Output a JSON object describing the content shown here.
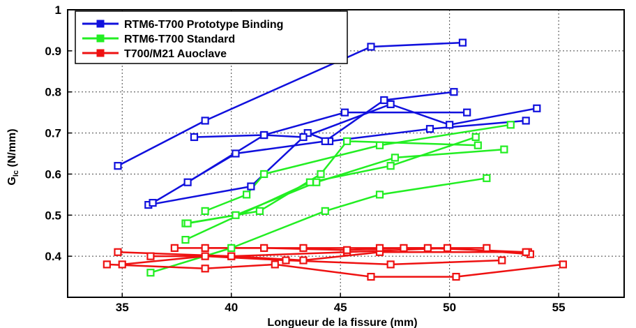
{
  "chart_data": {
    "type": "line",
    "xlabel": "Longueur de la fissure  (mm)",
    "ylabel_main": "G",
    "ylabel_sub": "Ic",
    "ylabel_rest": " (N/mm)",
    "xlim": [
      32.5,
      58
    ],
    "ylim": [
      0.3,
      1.0
    ],
    "xticks": [
      35,
      40,
      45,
      50,
      55
    ],
    "yticks": [
      0.4,
      0.5,
      0.6,
      0.7,
      0.8,
      0.9,
      1
    ],
    "ytick_labels": [
      "0.4",
      "0.5",
      "0.6",
      "0.7",
      "0.8",
      "0.9",
      "1"
    ],
    "grid": true,
    "legend_position": "top-left",
    "series": [
      {
        "name": "RTM6-T700 Prototype Binding",
        "color": "#1010dd",
        "legend": true,
        "points": [
          [
            34.8,
            0.62
          ],
          [
            38.8,
            0.73
          ],
          [
            46.4,
            0.91
          ],
          [
            50.6,
            0.92
          ]
        ]
      },
      {
        "color": "#1010dd",
        "points": [
          [
            36.2,
            0.525
          ],
          [
            40.9,
            0.57
          ],
          [
            43.5,
            0.7
          ],
          [
            44.5,
            0.68
          ],
          [
            49.1,
            0.71
          ],
          [
            53.5,
            0.73
          ]
        ]
      },
      {
        "color": "#1010dd",
        "points": [
          [
            38.3,
            0.69
          ],
          [
            41.5,
            0.695
          ],
          [
            43.3,
            0.69
          ],
          [
            47.3,
            0.77
          ],
          [
            50.0,
            0.72
          ],
          [
            54.0,
            0.76
          ]
        ]
      },
      {
        "color": "#1010dd",
        "points": [
          [
            36.4,
            0.53
          ],
          [
            40.2,
            0.65
          ],
          [
            44.3,
            0.68
          ],
          [
            47.0,
            0.78
          ],
          [
            50.2,
            0.8
          ]
        ]
      },
      {
        "color": "#1010dd",
        "points": [
          [
            38.0,
            0.58
          ],
          [
            41.5,
            0.695
          ],
          [
            45.2,
            0.75
          ],
          [
            50.8,
            0.75
          ]
        ]
      },
      {
        "name": "RTM6-T700 Standard",
        "color": "#22ee22",
        "legend": true,
        "points": [
          [
            36.3,
            0.36
          ],
          [
            40.0,
            0.42
          ],
          [
            44.3,
            0.51
          ],
          [
            46.8,
            0.55
          ],
          [
            51.7,
            0.59
          ]
        ]
      },
      {
        "color": "#22ee22",
        "points": [
          [
            37.9,
            0.44
          ],
          [
            43.6,
            0.58
          ],
          [
            47.3,
            0.62
          ],
          [
            51.2,
            0.69
          ]
        ]
      },
      {
        "color": "#22ee22",
        "points": [
          [
            37.9,
            0.48
          ],
          [
            40.2,
            0.5
          ],
          [
            43.9,
            0.58
          ],
          [
            47.5,
            0.64
          ],
          [
            52.5,
            0.66
          ]
        ]
      },
      {
        "color": "#22ee22",
        "points": [
          [
            38.0,
            0.48
          ],
          [
            41.3,
            0.51
          ],
          [
            44.1,
            0.6
          ],
          [
            45.3,
            0.68
          ],
          [
            51.3,
            0.67
          ]
        ]
      },
      {
        "color": "#22ee22",
        "points": [
          [
            38.8,
            0.51
          ],
          [
            40.7,
            0.55
          ],
          [
            41.5,
            0.6
          ],
          [
            46.8,
            0.67
          ],
          [
            52.8,
            0.72
          ]
        ]
      },
      {
        "name": "T700/M21 Auoclave",
        "color": "#ee1111",
        "legend": true,
        "points": [
          [
            34.3,
            0.38
          ],
          [
            38.8,
            0.37
          ],
          [
            42.0,
            0.38
          ],
          [
            46.4,
            0.35
          ],
          [
            50.3,
            0.35
          ],
          [
            55.2,
            0.38
          ]
        ]
      },
      {
        "color": "#ee1111",
        "points": [
          [
            35.0,
            0.38
          ],
          [
            38.8,
            0.4
          ],
          [
            42.5,
            0.39
          ],
          [
            47.3,
            0.38
          ],
          [
            52.4,
            0.39
          ]
        ]
      },
      {
        "color": "#ee1111",
        "points": [
          [
            34.8,
            0.41
          ],
          [
            40.0,
            0.4
          ],
          [
            43.3,
            0.39
          ],
          [
            46.8,
            0.41
          ],
          [
            53.6,
            0.41
          ]
        ]
      },
      {
        "color": "#ee1111",
        "points": [
          [
            36.3,
            0.4
          ],
          [
            40.0,
            0.4
          ],
          [
            45.3,
            0.41
          ],
          [
            49.9,
            0.42
          ],
          [
            53.7,
            0.405
          ]
        ]
      },
      {
        "color": "#ee1111",
        "points": [
          [
            37.4,
            0.42
          ],
          [
            41.5,
            0.42
          ],
          [
            45.3,
            0.415
          ],
          [
            47.9,
            0.42
          ],
          [
            51.7,
            0.42
          ]
        ]
      },
      {
        "color": "#ee1111",
        "points": [
          [
            38.8,
            0.42
          ],
          [
            43.3,
            0.42
          ],
          [
            46.8,
            0.42
          ],
          [
            49.0,
            0.42
          ],
          [
            53.5,
            0.41
          ]
        ]
      }
    ]
  }
}
